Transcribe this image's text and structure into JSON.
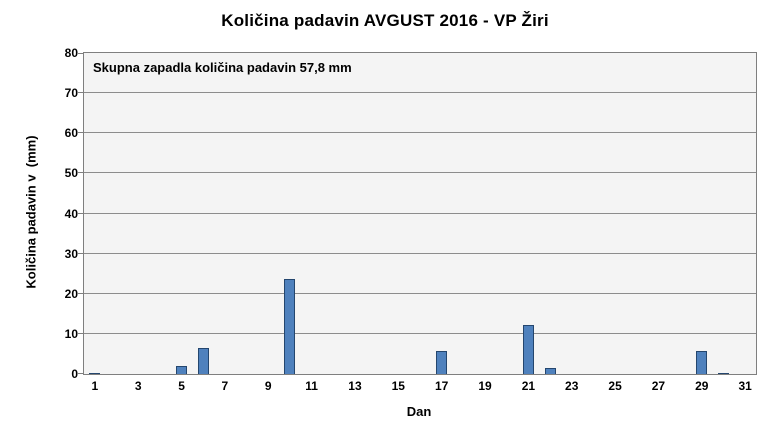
{
  "chart_data": {
    "type": "bar",
    "title": "Količina padavin AVGUST 2016 - VP Žiri",
    "xlabel": "Dan",
    "ylabel": "Količina padavin v  (mm)",
    "annotation": "Skupna zapadla količina padavin 57,8 mm",
    "ylim": [
      0,
      80
    ],
    "yticks": [
      0,
      10,
      20,
      30,
      40,
      50,
      60,
      70,
      80
    ],
    "xticks": [
      1,
      3,
      5,
      7,
      9,
      11,
      13,
      15,
      17,
      19,
      21,
      23,
      25,
      27,
      29,
      31
    ],
    "days_in_month": 31,
    "series": [
      {
        "day": 1,
        "value": 0.2
      },
      {
        "day": 5,
        "value": 2.0
      },
      {
        "day": 6,
        "value": 6.5
      },
      {
        "day": 10,
        "value": 23.8
      },
      {
        "day": 17,
        "value": 5.7
      },
      {
        "day": 21,
        "value": 12.2
      },
      {
        "day": 22,
        "value": 1.5
      },
      {
        "day": 29,
        "value": 5.7
      },
      {
        "day": 30,
        "value": 0.2
      }
    ],
    "gridlines": true,
    "legend": "none",
    "colors": {
      "bar_fill": "#4F81BD",
      "bar_border": "#24466E",
      "plot_background": "#F4F4F4",
      "gridline": "#8C8C8C",
      "axis": "#7F7F7F",
      "text": "#000000",
      "chart_background": "#FFFFFF"
    }
  }
}
